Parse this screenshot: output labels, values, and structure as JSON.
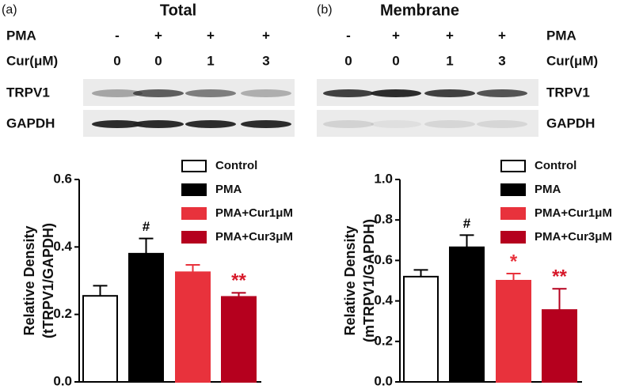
{
  "chart_data": [
    {
      "type": "bar",
      "panel": "(a)",
      "title": "Total",
      "blot_rows": [
        {
          "label": "PMA",
          "cells": [
            "-",
            "+",
            "+",
            "+"
          ]
        },
        {
          "label": "Cur(μM)",
          "cells": [
            "0",
            "0",
            "1",
            "3"
          ]
        }
      ],
      "bands": [
        "TRPV1",
        "GAPDH"
      ],
      "y_label": [
        "Relative Density",
        "(tTRPV1/GAPDH)"
      ],
      "ylim": [
        0,
        0.6
      ],
      "yticks": [
        {
          "value": 0,
          "label": "0.0"
        },
        0.2,
        0.4,
        0.6
      ],
      "series": [
        {
          "name": "Control",
          "color": "#ffffff",
          "values": [
            0.255
          ],
          "errors": [
            0.03
          ]
        },
        {
          "name": "PMA",
          "color": "#000000",
          "values": [
            0.38
          ],
          "errors": [
            0.045
          ],
          "annotation": "#",
          "annotation_color": "#000000"
        },
        {
          "name": "PMA+Cur1μM",
          "color": "#e8323c",
          "values": [
            0.325
          ],
          "errors": [
            0.022
          ]
        },
        {
          "name": "PMA+Cur3μM",
          "color": "#b5001e",
          "values": [
            0.252
          ],
          "errors": [
            0.012
          ],
          "annotation": "**",
          "annotation_color": "#d7192a"
        }
      ]
    },
    {
      "type": "bar",
      "panel": "(b)",
      "title": "Membrane",
      "blot_rows": [
        {
          "label": "PMA",
          "cells": [
            "-",
            "+",
            "+",
            "+"
          ]
        },
        {
          "label": "Cur(μM)",
          "cells": [
            "0",
            "0",
            "1",
            "3"
          ]
        }
      ],
      "bands": [
        "TRPV1",
        "GAPDH"
      ],
      "y_label": [
        "Relative Density",
        "(mTRPV1/GAPDH)"
      ],
      "ylim": [
        0,
        1
      ],
      "yticks": [
        {
          "value": 0,
          "label": "0.0"
        },
        0.2,
        0.4,
        0.6,
        0.8,
        {
          "value": 1,
          "label": "1.0"
        }
      ],
      "series": [
        {
          "name": "Control",
          "color": "#ffffff",
          "values": [
            0.52
          ],
          "errors": [
            0.033
          ]
        },
        {
          "name": "PMA",
          "color": "#000000",
          "values": [
            0.665
          ],
          "errors": [
            0.06
          ],
          "annotation": "#",
          "annotation_color": "#000000"
        },
        {
          "name": "PMA+Cur1μM",
          "color": "#e8323c",
          "values": [
            0.5
          ],
          "errors": [
            0.035
          ],
          "annotation": "*",
          "annotation_color": "#e8323c"
        },
        {
          "name": "PMA+Cur3μM",
          "color": "#b5001e",
          "values": [
            0.355
          ],
          "errors": [
            0.105
          ],
          "annotation": "**",
          "annotation_color": "#d7192a"
        }
      ]
    }
  ]
}
